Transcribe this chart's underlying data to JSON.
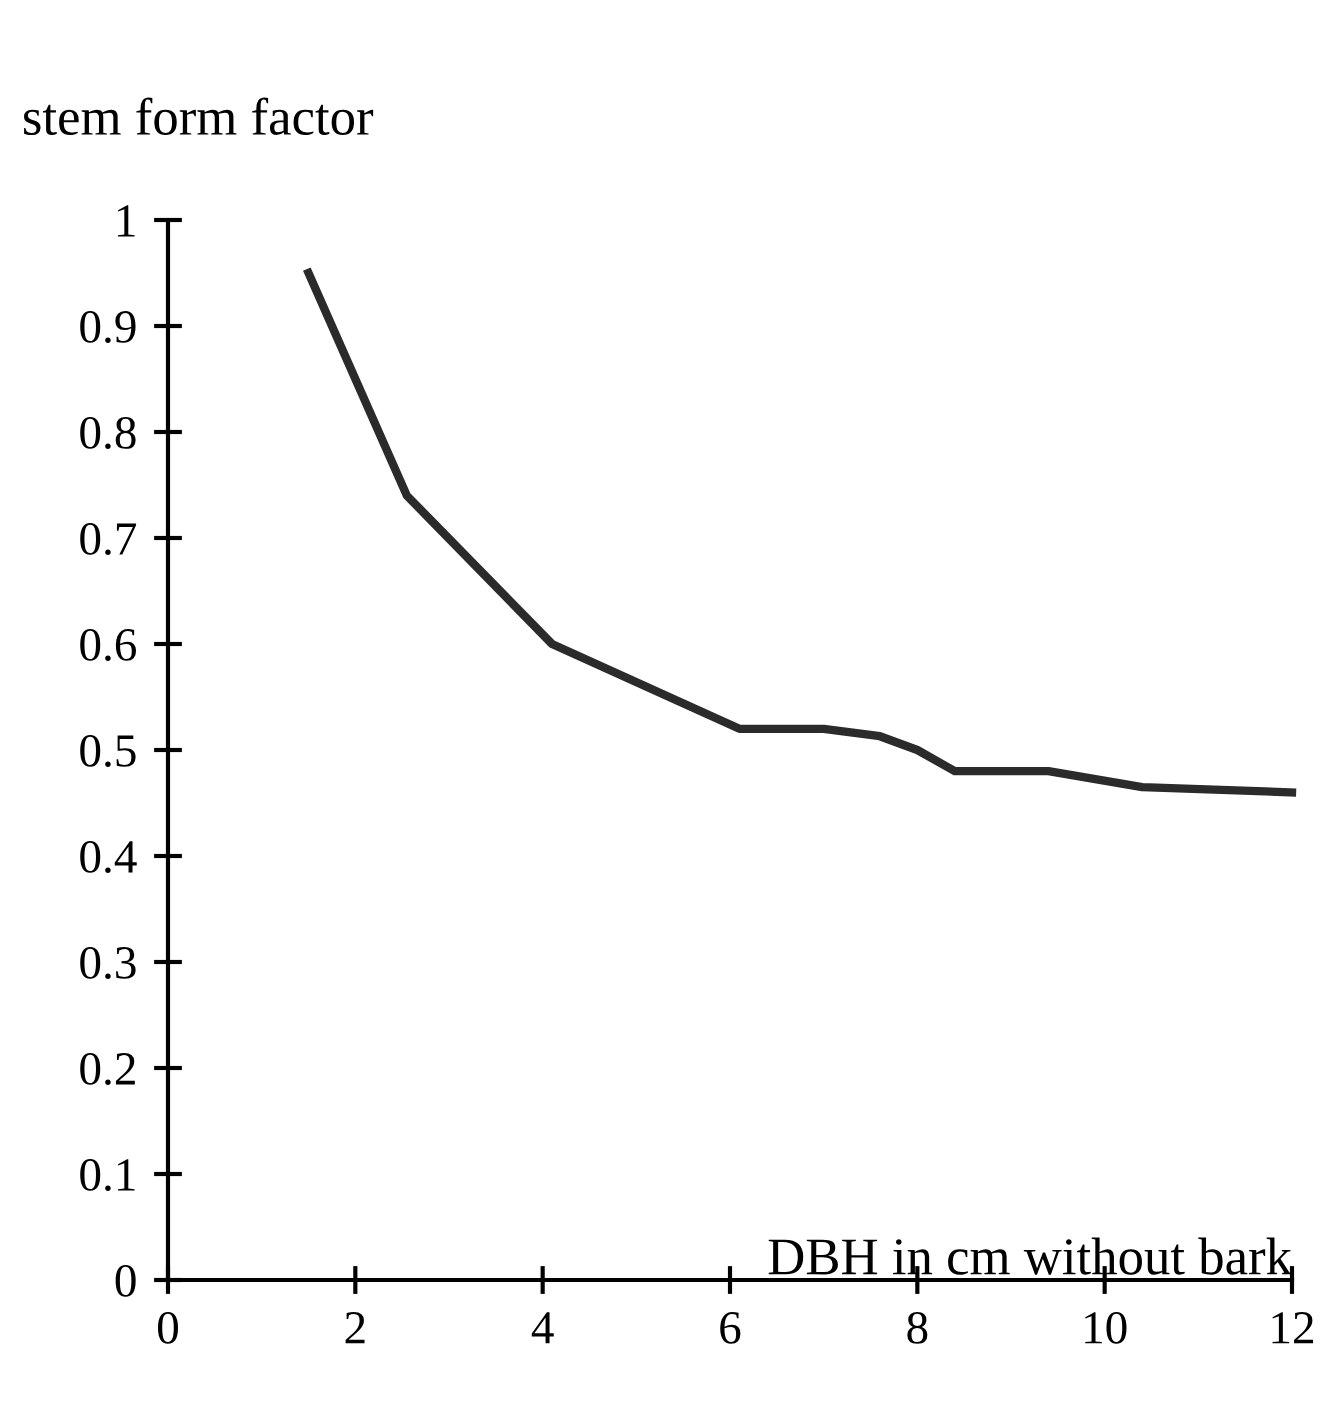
{
  "chart_data": {
    "type": "line",
    "xlabel": "DBH in cm without bark",
    "ylabel": "stem form factor",
    "x": [
      1.5,
      2.55,
      4.1,
      6.1,
      7.0,
      7.6,
      8.0,
      8.4,
      9.4,
      10.4,
      12.0
    ],
    "series": [
      {
        "color": "#2b2b2b",
        "values": [
          0.95,
          0.74,
          0.6,
          0.52,
          0.52,
          0.513,
          0.5,
          0.48,
          0.48,
          0.465,
          0.46
        ]
      }
    ],
    "xlim": [
      0,
      12
    ],
    "ylim": [
      0,
      1
    ],
    "xticks": [
      0,
      2,
      4,
      6,
      8,
      10,
      12
    ],
    "yticks": [
      0,
      0.1,
      0.2,
      0.3,
      0.4,
      0.5,
      0.6,
      0.7,
      0.8,
      0.9,
      1
    ],
    "grid": false,
    "legend": false,
    "marker": "none",
    "line_style": "solid"
  }
}
